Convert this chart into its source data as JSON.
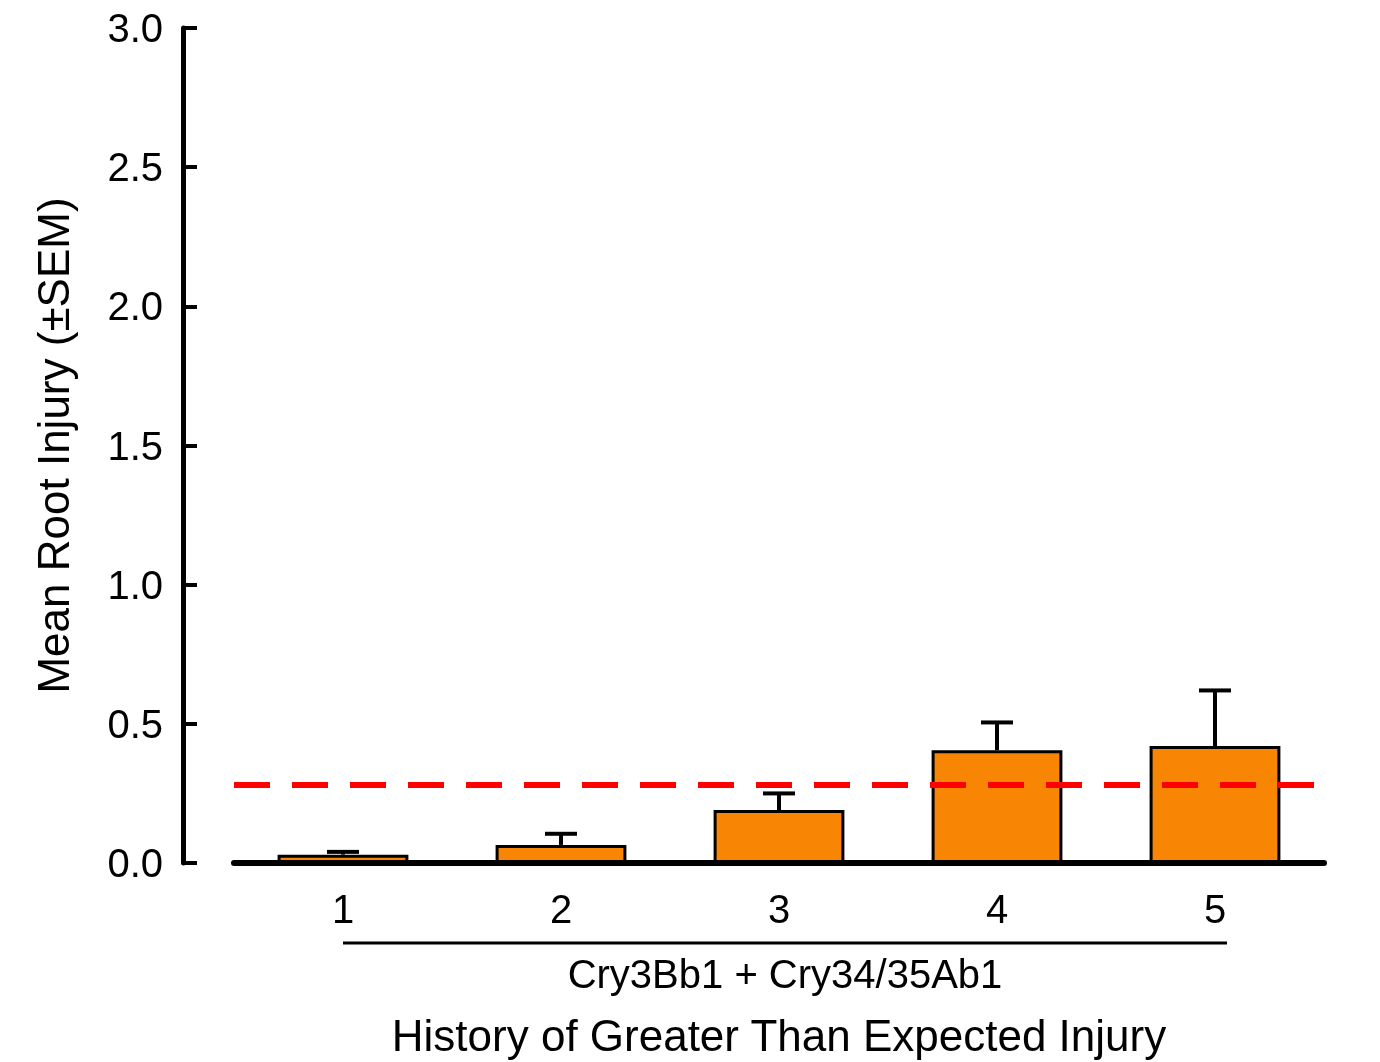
{
  "chart_data": {
    "type": "bar",
    "categories": [
      "1",
      "2",
      "3",
      "4",
      "5"
    ],
    "values": [
      0.03,
      0.065,
      0.19,
      0.405,
      0.42
    ],
    "errors": [
      [
        0.03,
        0.04
      ],
      [
        0.065,
        0.105
      ],
      [
        0.19,
        0.25
      ],
      [
        0.405,
        0.505
      ],
      [
        0.42,
        0.62
      ]
    ],
    "color": "#f88504",
    "ylim": [
      0,
      3
    ],
    "yticks": [
      {
        "value": 0,
        "label": "0.0"
      },
      0.5,
      {
        "value": 1,
        "label": "1.0"
      },
      1.5,
      {
        "value": 2,
        "label": "2.0"
      },
      2.5,
      {
        "value": 3,
        "label": "3.0"
      }
    ],
    "ylabel": "Mean Root Injury (±SEM)",
    "xlabel": "History of Greater Than Expected Injury",
    "annotations": [
      "Cry3Bb1 + Cry34/35Ab1"
    ],
    "ref_lines": [
      {
        "axis": "y",
        "value": 0.28,
        "color": "#ff0000",
        "line_style": "dashed"
      }
    ],
    "grid": false
  }
}
